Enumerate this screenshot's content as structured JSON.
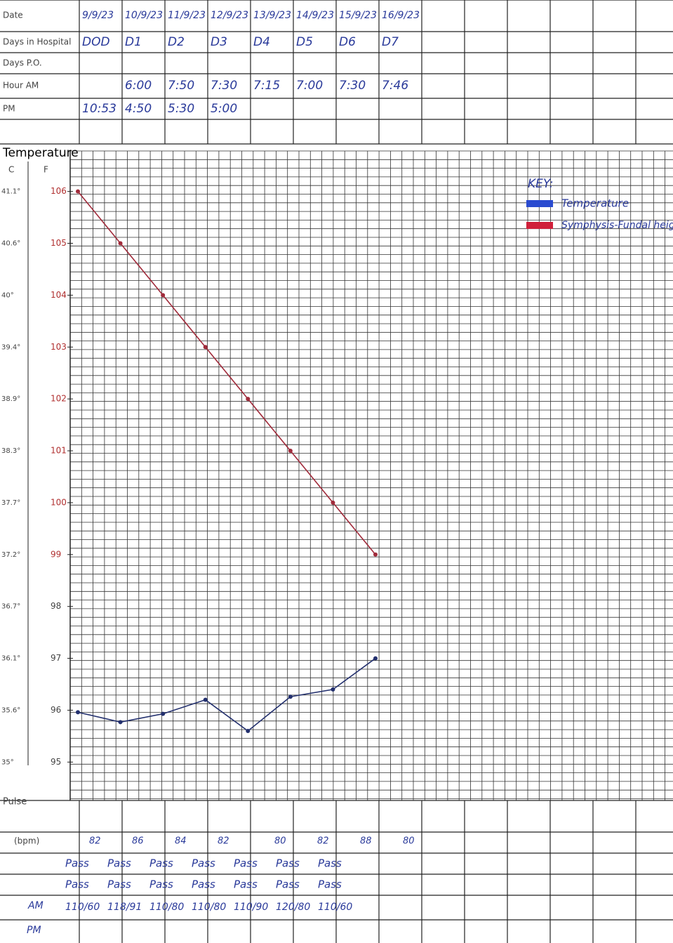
{
  "header": {
    "labels": [
      "Date",
      "Days in Hospital",
      "Days P.O.",
      "Hour AM",
      "PM"
    ],
    "dates": [
      "9/9/23",
      "10/9/23",
      "11/9/23",
      "12/9/23",
      "13/9/23",
      "14/9/23",
      "15/9/23",
      "16/9/23"
    ],
    "days": [
      "DOD",
      "D1",
      "D2",
      "D3",
      "D4",
      "D5",
      "D6",
      "D7"
    ],
    "am": [
      null,
      "6:00",
      "7:50",
      "7:30",
      "7:15",
      "7:00",
      "7:30",
      "7:46"
    ],
    "pm": [
      "10:53",
      "4:50",
      "5:30",
      "5:00"
    ]
  },
  "plot": {
    "title": "Temperature",
    "c_label": "C",
    "f_label": "F",
    "c_ticks": [
      "41.1°",
      "40.6°",
      "40°",
      "39.4°",
      "38.9°",
      "38.3°",
      "37.7°",
      "37.2°",
      "36.7°",
      "36.1°",
      "35.6°",
      "35°"
    ],
    "f_ticks": [
      106,
      105,
      104,
      103,
      102,
      101,
      100,
      99,
      98,
      97,
      96,
      95
    ],
    "ylim": [
      94.26,
      106.78
    ],
    "key": {
      "title": "KEY:",
      "temperature": "Temperature",
      "fundal": "Symphysis-Fundal height"
    },
    "fundal_height": [
      106,
      105,
      104,
      103,
      102,
      101,
      100,
      99
    ],
    "temperature": [
      95.96,
      95.77,
      95.93,
      96.2,
      95.6,
      96.26,
      96.4,
      97.0
    ]
  },
  "footer": {
    "pulse_label": "Pulse",
    "bpm_label": "(bpm)",
    "pulse": [
      "82",
      "86",
      "84",
      "82",
      "80",
      "82",
      "88",
      "80"
    ],
    "row1": [
      "Pass",
      "Pass",
      "Pass",
      "Pass",
      "Pass",
      "Pass",
      "Pass"
    ],
    "row2": [
      "Pass",
      "Pass",
      "Pass",
      "Pass",
      "Pass",
      "Pass",
      "Pass"
    ],
    "bp_am_label": "AM",
    "bp_pm_label": "PM",
    "bp": [
      "110/60",
      "118/91",
      "110/80",
      "110/80",
      "110/90",
      "120/80",
      "110/60"
    ]
  }
}
